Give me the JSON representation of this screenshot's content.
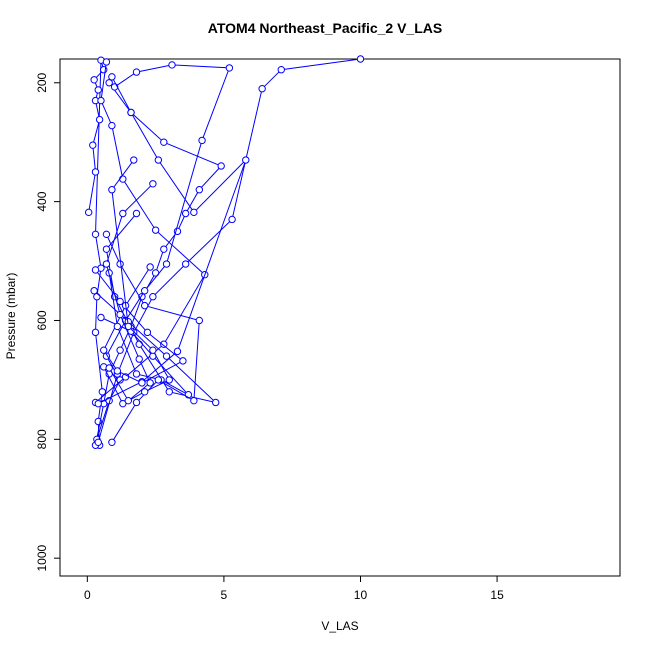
{
  "chart_data": {
    "type": "line",
    "title": "ATOM4 Northeast_Pacific_2 V_LAS",
    "xlabel": "V_LAS",
    "ylabel": "Pressure (mbar)",
    "xlim": [
      -1,
      19.5
    ],
    "ylim": [
      1030,
      160
    ],
    "y_reversed": true,
    "xticks": [
      0,
      5,
      10,
      15
    ],
    "yticks": [
      200,
      400,
      600,
      800,
      1000
    ],
    "grid": false,
    "legend": "none",
    "color": "#0000ff",
    "series": [
      {
        "x": [
          0.05,
          0.3,
          0.2,
          0.45,
          0.3,
          0.4,
          0.25,
          0.6,
          0.5,
          0.3,
          0.5,
          0.35,
          0.3,
          0.55,
          0.4,
          0.45
        ],
        "y": [
          418,
          350,
          305,
          262,
          230,
          212,
          195,
          178,
          162,
          455,
          512,
          560,
          620,
          720,
          770,
          810
        ]
      },
      {
        "x": [
          0.3,
          0.6,
          0.8,
          1.2,
          1.6,
          2.0,
          2.5,
          2.8,
          3.3,
          3.6,
          4.1,
          4.9,
          2.8,
          1.6,
          0.8
        ],
        "y": [
          810,
          740,
          690,
          650,
          610,
          560,
          520,
          480,
          450,
          420,
          380,
          340,
          300,
          250,
          200
        ]
      },
      {
        "x": [
          0.35,
          0.8,
          1.2,
          0.7,
          1.4,
          2.1,
          2.9,
          4.2,
          5.2,
          3.1,
          1.8,
          1.0
        ],
        "y": [
          800,
          735,
          700,
          660,
          600,
          550,
          505,
          297,
          175,
          170,
          182,
          207
        ]
      },
      {
        "x": [
          0.4,
          1.1,
          1.7,
          2.4,
          3.6,
          5.3,
          6.4,
          7.1,
          10.0
        ],
        "y": [
          805,
          690,
          620,
          560,
          505,
          430,
          210,
          178,
          160
        ]
      },
      {
        "x": [
          0.3,
          1.4,
          2.8,
          4.3,
          2.5,
          1.3,
          0.9,
          0.5,
          0.7
        ],
        "y": [
          738,
          695,
          640,
          523,
          448,
          362,
          272,
          230,
          165
        ]
      },
      {
        "x": [
          0.4,
          2.0,
          3.3,
          5.8,
          3.9,
          2.6,
          1.6,
          0.9
        ],
        "y": [
          740,
          703,
          652,
          330,
          418,
          330,
          250,
          190
        ]
      },
      {
        "x": [
          0.25,
          1.5,
          2.9,
          4.7,
          3.0,
          1.9,
          1.0,
          0.7,
          1.8
        ],
        "y": [
          550,
          602,
          660,
          738,
          720,
          640,
          560,
          480,
          420
        ]
      },
      {
        "x": [
          0.3,
          1.2,
          2.2,
          3.5,
          2.0,
          1.1,
          0.6,
          1.4,
          2.3
        ],
        "y": [
          515,
          568,
          620,
          668,
          705,
          685,
          650,
          575,
          510
        ]
      },
      {
        "x": [
          0.5,
          1.6,
          2.4,
          3.7,
          2.7,
          1.8,
          1.1,
          0.8
        ],
        "y": [
          595,
          618,
          660,
          725,
          700,
          690,
          610,
          520
        ]
      },
      {
        "x": [
          0.9,
          1.8,
          2.6,
          3.9,
          4.1,
          2.1,
          1.2,
          0.7
        ],
        "y": [
          805,
          738,
          700,
          735,
          600,
          575,
          505,
          455
        ]
      },
      {
        "x": [
          0.6,
          1.3,
          2.1,
          3.0,
          2.4,
          1.5,
          0.9,
          1.7
        ],
        "y": [
          678,
          740,
          720,
          700,
          650,
          610,
          380,
          330
        ]
      },
      {
        "x": [
          0.8,
          1.5,
          2.3,
          1.9,
          1.2,
          0.7,
          1.3,
          2.4
        ],
        "y": [
          680,
          735,
          705,
          665,
          590,
          505,
          420,
          370
        ]
      }
    ]
  }
}
